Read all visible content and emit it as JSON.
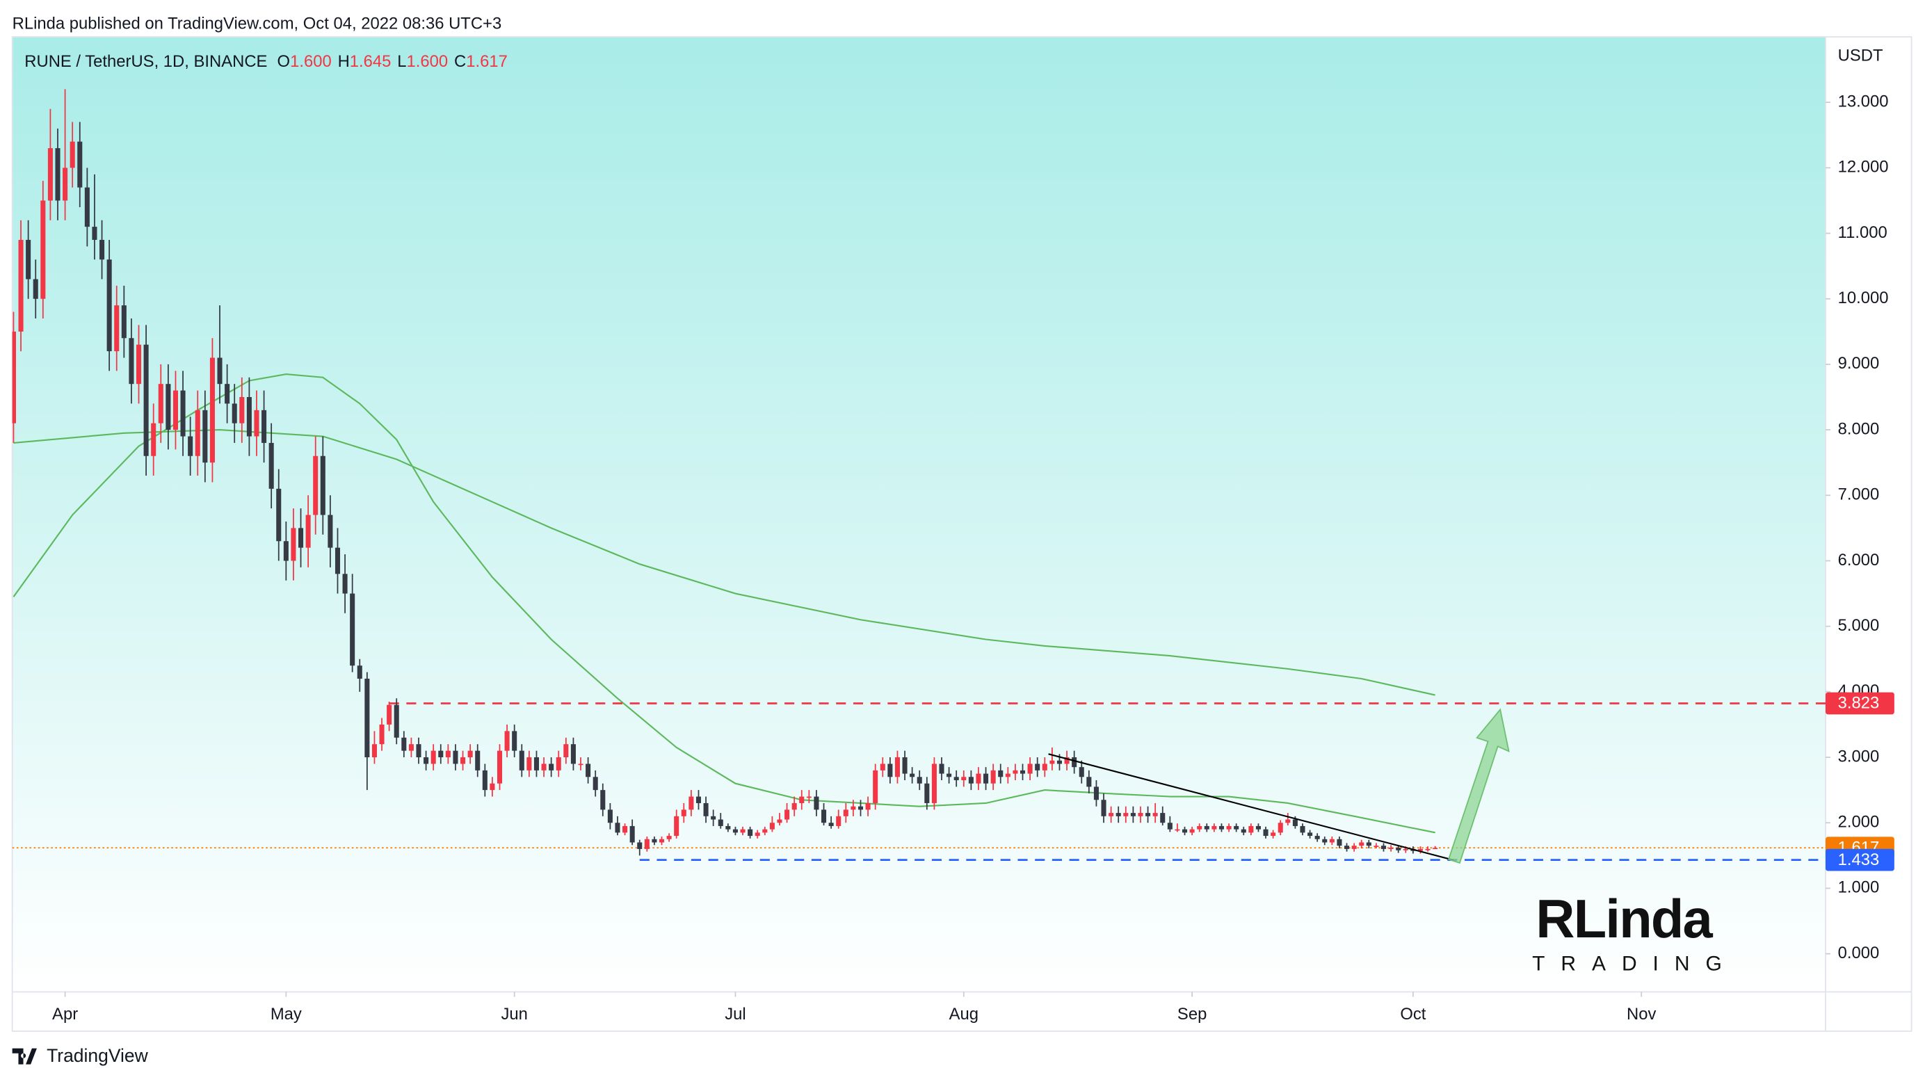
{
  "header": {
    "publisher": "RLinda published on TradingView.com, Oct 04, 2022 08:36 UTC+3",
    "symbol": "RUNE / TetherUS, 1D, BINANCE",
    "ohlc_legend": [
      {
        "key": "O",
        "value": "1.600"
      },
      {
        "key": "H",
        "value": "1.645"
      },
      {
        "key": "L",
        "value": "1.600"
      },
      {
        "key": "C",
        "value": "1.617"
      }
    ]
  },
  "footer": {
    "brand": "TradingView"
  },
  "logo": {
    "name": "RLinda",
    "tagline": "TRADING"
  },
  "chart_data": {
    "type": "candlestick",
    "y_unit": "USDT",
    "up_color": "#f23645",
    "down_color": "#363a45",
    "xlim": [
      -7.17,
      239
    ],
    "ylim": [
      -0.582,
      14.0
    ],
    "xticks": [
      {
        "value": 0,
        "label": "Apr"
      },
      {
        "value": 30,
        "label": "May"
      },
      {
        "value": 61,
        "label": "Jun"
      },
      {
        "value": 91,
        "label": "Jul"
      },
      {
        "value": 122,
        "label": "Aug"
      },
      {
        "value": 153,
        "label": "Sep"
      },
      {
        "value": 183,
        "label": "Oct"
      },
      {
        "value": 214,
        "label": "Nov"
      }
    ],
    "yticks": [
      {
        "value": 0,
        "label": "0.000"
      },
      {
        "value": 1,
        "label": "1.000"
      },
      {
        "value": 2,
        "label": "2.000"
      },
      {
        "value": 3,
        "label": "3.000"
      },
      {
        "value": 4,
        "label": "4.000"
      },
      {
        "value": 5,
        "label": "5.000"
      },
      {
        "value": 6,
        "label": "6.000"
      },
      {
        "value": 7,
        "label": "7.000"
      },
      {
        "value": 8,
        "label": "8.000"
      },
      {
        "value": 9,
        "label": "9.000"
      },
      {
        "value": 10,
        "label": "10.000"
      },
      {
        "value": 11,
        "label": "11.000"
      },
      {
        "value": 12,
        "label": "12.000"
      },
      {
        "value": 13,
        "label": "13.000"
      }
    ],
    "x": [
      -7,
      -6,
      -5,
      -4,
      -3,
      -2,
      -1,
      0,
      1,
      2,
      3,
      4,
      5,
      6,
      7,
      8,
      9,
      10,
      11,
      12,
      13,
      14,
      15,
      16,
      17,
      18,
      19,
      20,
      21,
      22,
      23,
      24,
      25,
      26,
      27,
      28,
      29,
      30,
      31,
      32,
      33,
      34,
      35,
      36,
      37,
      38,
      39,
      40,
      41,
      42,
      43,
      44,
      45,
      46,
      47,
      48,
      49,
      50,
      51,
      52,
      53,
      54,
      55,
      56,
      57,
      58,
      59,
      60,
      61,
      62,
      63,
      64,
      65,
      66,
      67,
      68,
      69,
      70,
      71,
      72,
      73,
      74,
      75,
      76,
      77,
      78,
      79,
      80,
      81,
      82,
      83,
      84,
      85,
      86,
      87,
      88,
      89,
      90,
      91,
      92,
      93,
      94,
      95,
      96,
      97,
      98,
      99,
      100,
      101,
      102,
      103,
      104,
      105,
      106,
      107,
      108,
      109,
      110,
      111,
      112,
      113,
      114,
      115,
      116,
      117,
      118,
      119,
      120,
      121,
      122,
      123,
      124,
      125,
      126,
      127,
      128,
      129,
      130,
      131,
      132,
      133,
      134,
      135,
      136,
      137,
      138,
      139,
      140,
      141,
      142,
      143,
      144,
      145,
      146,
      147,
      148,
      149,
      150,
      151,
      152,
      153,
      154,
      155,
      156,
      157,
      158,
      159,
      160,
      161,
      162,
      163,
      164,
      165,
      166,
      167,
      168,
      169,
      170,
      171,
      172,
      173,
      174,
      175,
      176,
      177,
      178,
      179,
      180,
      181,
      182,
      183,
      184,
      185,
      186
    ],
    "ohlc": [
      [
        8.1,
        9.8,
        7.8,
        9.5
      ],
      [
        9.5,
        11.2,
        9.2,
        10.9
      ],
      [
        10.9,
        11.2,
        10.0,
        10.3
      ],
      [
        10.3,
        10.6,
        9.7,
        10.0
      ],
      [
        10.0,
        11.8,
        9.7,
        11.5
      ],
      [
        11.5,
        12.9,
        11.2,
        12.3
      ],
      [
        12.3,
        12.6,
        11.2,
        11.5
      ],
      [
        11.5,
        13.2,
        11.2,
        12.0
      ],
      [
        12.0,
        12.7,
        11.7,
        12.4
      ],
      [
        12.4,
        12.7,
        11.4,
        11.7
      ],
      [
        11.7,
        12.0,
        10.8,
        11.1
      ],
      [
        11.1,
        11.9,
        10.6,
        10.9
      ],
      [
        10.9,
        11.2,
        10.3,
        10.6
      ],
      [
        10.6,
        10.9,
        8.9,
        9.2
      ],
      [
        9.2,
        10.2,
        8.9,
        9.9
      ],
      [
        9.9,
        10.2,
        9.1,
        9.4
      ],
      [
        9.4,
        9.7,
        8.4,
        8.7
      ],
      [
        8.7,
        9.6,
        8.4,
        9.3
      ],
      [
        9.3,
        9.6,
        7.3,
        7.6
      ],
      [
        7.6,
        8.4,
        7.3,
        8.1
      ],
      [
        8.1,
        9.0,
        7.8,
        8.7
      ],
      [
        8.7,
        9.0,
        7.7,
        8.0
      ],
      [
        8.0,
        8.9,
        7.7,
        8.6
      ],
      [
        8.6,
        8.9,
        7.6,
        7.9
      ],
      [
        7.9,
        8.2,
        7.3,
        7.6
      ],
      [
        7.6,
        8.6,
        7.3,
        8.3
      ],
      [
        8.3,
        8.6,
        7.2,
        7.5
      ],
      [
        7.5,
        9.4,
        7.2,
        9.1
      ],
      [
        9.1,
        9.9,
        8.4,
        8.7
      ],
      [
        8.7,
        9.0,
        8.1,
        8.4
      ],
      [
        8.4,
        8.7,
        7.8,
        8.1
      ],
      [
        8.1,
        8.8,
        7.8,
        8.5
      ],
      [
        8.5,
        8.8,
        7.6,
        7.9
      ],
      [
        7.9,
        8.6,
        7.6,
        8.3
      ],
      [
        8.3,
        8.6,
        7.5,
        7.8
      ],
      [
        7.8,
        8.1,
        6.8,
        7.1
      ],
      [
        7.1,
        7.4,
        6.0,
        6.3
      ],
      [
        6.3,
        6.6,
        5.7,
        6.0
      ],
      [
        6.0,
        6.8,
        5.7,
        6.5
      ],
      [
        6.5,
        6.8,
        5.9,
        6.2
      ],
      [
        6.2,
        7.0,
        5.9,
        6.7
      ],
      [
        6.7,
        7.9,
        6.4,
        7.6
      ],
      [
        7.6,
        7.9,
        6.4,
        6.7
      ],
      [
        6.7,
        7.0,
        5.9,
        6.2
      ],
      [
        6.2,
        6.5,
        5.5,
        5.8
      ],
      [
        5.8,
        6.1,
        5.2,
        5.5
      ],
      [
        5.5,
        5.8,
        4.3,
        4.4
      ],
      [
        4.4,
        4.5,
        4.0,
        4.2
      ],
      [
        4.2,
        4.3,
        2.5,
        3.0
      ],
      [
        3.0,
        3.4,
        2.9,
        3.2
      ],
      [
        3.2,
        3.6,
        3.1,
        3.5
      ],
      [
        3.5,
        3.85,
        3.4,
        3.8
      ],
      [
        3.8,
        3.9,
        3.2,
        3.3
      ],
      [
        3.3,
        3.4,
        3.0,
        3.1
      ],
      [
        3.1,
        3.3,
        3.0,
        3.2
      ],
      [
        3.2,
        3.3,
        2.9,
        3.0
      ],
      [
        3.0,
        3.1,
        2.8,
        2.9
      ],
      [
        2.9,
        3.2,
        2.8,
        3.1
      ],
      [
        3.1,
        3.2,
        2.9,
        3.0
      ],
      [
        3.0,
        3.2,
        2.9,
        3.1
      ],
      [
        3.1,
        3.2,
        2.8,
        2.9
      ],
      [
        2.9,
        3.1,
        2.8,
        3.0
      ],
      [
        3.0,
        3.2,
        2.9,
        3.1
      ],
      [
        3.1,
        3.2,
        2.7,
        2.8
      ],
      [
        2.8,
        2.9,
        2.4,
        2.5
      ],
      [
        2.5,
        2.7,
        2.4,
        2.6
      ],
      [
        2.6,
        3.2,
        2.5,
        3.1
      ],
      [
        3.1,
        3.5,
        3.0,
        3.4
      ],
      [
        3.4,
        3.5,
        3.0,
        3.1
      ],
      [
        3.1,
        3.2,
        2.7,
        2.8
      ],
      [
        2.8,
        3.1,
        2.7,
        3.0
      ],
      [
        3.0,
        3.1,
        2.7,
        2.8
      ],
      [
        2.8,
        3.0,
        2.7,
        2.9
      ],
      [
        2.9,
        3.0,
        2.7,
        2.8
      ],
      [
        2.8,
        3.1,
        2.7,
        3.0
      ],
      [
        3.0,
        3.3,
        2.9,
        3.2
      ],
      [
        3.2,
        3.3,
        2.8,
        2.9
      ],
      [
        2.9,
        3.0,
        2.8,
        2.9
      ],
      [
        2.9,
        3.0,
        2.6,
        2.7
      ],
      [
        2.7,
        2.8,
        2.4,
        2.5
      ],
      [
        2.5,
        2.6,
        2.1,
        2.2
      ],
      [
        2.2,
        2.3,
        1.9,
        2.0
      ],
      [
        2.0,
        2.1,
        1.81,
        1.85
      ],
      [
        1.85,
        1.99,
        1.81,
        1.95
      ],
      [
        1.95,
        2.05,
        1.66,
        1.7
      ],
      [
        1.7,
        1.74,
        1.5,
        1.6
      ],
      [
        1.6,
        1.79,
        1.56,
        1.75
      ],
      [
        1.75,
        1.79,
        1.66,
        1.7
      ],
      [
        1.7,
        1.79,
        1.66,
        1.75
      ],
      [
        1.75,
        1.84,
        1.71,
        1.8
      ],
      [
        1.8,
        2.2,
        1.76,
        2.1
      ],
      [
        2.1,
        2.3,
        2.0,
        2.2
      ],
      [
        2.2,
        2.5,
        2.1,
        2.4
      ],
      [
        2.4,
        2.5,
        2.2,
        2.3
      ],
      [
        2.3,
        2.4,
        2.0,
        2.1
      ],
      [
        2.1,
        2.2,
        1.95,
        2.05
      ],
      [
        2.05,
        2.15,
        1.91,
        1.95
      ],
      [
        1.95,
        1.99,
        1.86,
        1.9
      ],
      [
        1.9,
        1.94,
        1.81,
        1.85
      ],
      [
        1.85,
        1.94,
        1.81,
        1.9
      ],
      [
        1.9,
        1.94,
        1.76,
        1.8
      ],
      [
        1.8,
        1.89,
        1.76,
        1.85
      ],
      [
        1.85,
        1.94,
        1.81,
        1.9
      ],
      [
        1.9,
        2.1,
        1.86,
        2.0
      ],
      [
        2.0,
        2.15,
        1.96,
        2.05
      ],
      [
        2.05,
        2.3,
        2.0,
        2.2
      ],
      [
        2.2,
        2.4,
        2.1,
        2.3
      ],
      [
        2.3,
        2.5,
        2.2,
        2.4
      ],
      [
        2.4,
        2.5,
        2.3,
        2.4
      ],
      [
        2.4,
        2.5,
        2.1,
        2.2
      ],
      [
        2.2,
        2.3,
        1.96,
        2.0
      ],
      [
        2.0,
        2.1,
        1.91,
        1.95
      ],
      [
        1.95,
        2.2,
        1.91,
        2.1
      ],
      [
        2.1,
        2.3,
        2.0,
        2.2
      ],
      [
        2.2,
        2.35,
        2.1,
        2.25
      ],
      [
        2.25,
        2.35,
        2.1,
        2.2
      ],
      [
        2.2,
        2.4,
        2.1,
        2.3
      ],
      [
        2.3,
        2.9,
        2.2,
        2.8
      ],
      [
        2.8,
        3.0,
        2.7,
        2.9
      ],
      [
        2.9,
        3.0,
        2.6,
        2.7
      ],
      [
        2.7,
        3.1,
        2.6,
        3.0
      ],
      [
        3.0,
        3.1,
        2.65,
        2.75
      ],
      [
        2.75,
        2.85,
        2.6,
        2.7
      ],
      [
        2.7,
        2.8,
        2.5,
        2.6
      ],
      [
        2.6,
        2.7,
        2.2,
        2.3
      ],
      [
        2.3,
        3.0,
        2.2,
        2.9
      ],
      [
        2.9,
        3.0,
        2.65,
        2.75
      ],
      [
        2.75,
        2.85,
        2.6,
        2.7
      ],
      [
        2.7,
        2.8,
        2.55,
        2.65
      ],
      [
        2.65,
        2.8,
        2.55,
        2.7
      ],
      [
        2.7,
        2.8,
        2.5,
        2.6
      ],
      [
        2.6,
        2.85,
        2.5,
        2.75
      ],
      [
        2.75,
        2.85,
        2.5,
        2.6
      ],
      [
        2.6,
        2.9,
        2.5,
        2.8
      ],
      [
        2.8,
        2.9,
        2.6,
        2.7
      ],
      [
        2.7,
        2.85,
        2.6,
        2.75
      ],
      [
        2.75,
        2.9,
        2.65,
        2.8
      ],
      [
        2.8,
        2.9,
        2.65,
        2.75
      ],
      [
        2.75,
        3.0,
        2.65,
        2.9
      ],
      [
        2.9,
        3.0,
        2.7,
        2.8
      ],
      [
        2.8,
        3.0,
        2.7,
        2.9
      ],
      [
        2.9,
        3.15,
        2.8,
        2.95
      ],
      [
        2.95,
        3.05,
        2.8,
        2.9
      ],
      [
        2.9,
        3.1,
        2.8,
        3.0
      ],
      [
        3.0,
        3.1,
        2.75,
        2.85
      ],
      [
        2.85,
        2.95,
        2.6,
        2.7
      ],
      [
        2.7,
        2.8,
        2.45,
        2.55
      ],
      [
        2.55,
        2.65,
        2.25,
        2.35
      ],
      [
        2.35,
        2.45,
        2.0,
        2.1
      ],
      [
        2.1,
        2.25,
        2.0,
        2.15
      ],
      [
        2.15,
        2.25,
        2.0,
        2.1
      ],
      [
        2.1,
        2.25,
        2.0,
        2.15
      ],
      [
        2.15,
        2.25,
        2.0,
        2.1
      ],
      [
        2.1,
        2.25,
        2.0,
        2.15
      ],
      [
        2.15,
        2.25,
        2.0,
        2.1
      ],
      [
        2.1,
        2.3,
        2.0,
        2.15
      ],
      [
        2.15,
        2.25,
        1.96,
        2.0
      ],
      [
        2.0,
        2.1,
        1.86,
        1.9
      ],
      [
        1.9,
        1.99,
        1.86,
        1.9
      ],
      [
        1.9,
        1.94,
        1.81,
        1.85
      ],
      [
        1.85,
        1.94,
        1.81,
        1.9
      ],
      [
        1.9,
        1.99,
        1.86,
        1.95
      ],
      [
        1.95,
        1.99,
        1.86,
        1.9
      ],
      [
        1.9,
        1.99,
        1.86,
        1.95
      ],
      [
        1.95,
        1.99,
        1.86,
        1.9
      ],
      [
        1.9,
        1.99,
        1.86,
        1.95
      ],
      [
        1.95,
        1.99,
        1.86,
        1.9
      ],
      [
        1.9,
        1.94,
        1.81,
        1.85
      ],
      [
        1.85,
        1.99,
        1.81,
        1.95
      ],
      [
        1.95,
        1.99,
        1.86,
        1.9
      ],
      [
        1.9,
        1.94,
        1.76,
        1.8
      ],
      [
        1.8,
        1.89,
        1.76,
        1.85
      ],
      [
        1.85,
        2.04,
        1.81,
        2.0
      ],
      [
        2.0,
        2.15,
        1.96,
        2.05
      ],
      [
        2.05,
        2.1,
        1.91,
        1.95
      ],
      [
        1.95,
        1.99,
        1.81,
        1.85
      ],
      [
        1.85,
        1.89,
        1.76,
        1.8
      ],
      [
        1.8,
        1.84,
        1.71,
        1.75
      ],
      [
        1.75,
        1.79,
        1.66,
        1.7
      ],
      [
        1.7,
        1.79,
        1.66,
        1.75
      ],
      [
        1.75,
        1.79,
        1.61,
        1.65
      ],
      [
        1.65,
        1.69,
        1.56,
        1.6
      ],
      [
        1.6,
        1.69,
        1.56,
        1.65
      ],
      [
        1.65,
        1.74,
        1.61,
        1.7
      ],
      [
        1.7,
        1.74,
        1.61,
        1.65
      ],
      [
        1.65,
        1.69,
        1.61,
        1.65
      ],
      [
        1.65,
        1.69,
        1.56,
        1.6
      ],
      [
        1.6,
        1.66,
        1.56,
        1.62
      ],
      [
        1.62,
        1.66,
        1.54,
        1.58
      ],
      [
        1.58,
        1.64,
        1.54,
        1.6
      ],
      [
        1.6,
        1.64,
        1.53,
        1.57
      ],
      [
        1.57,
        1.64,
        1.53,
        1.6
      ],
      [
        1.6,
        1.64,
        1.56,
        1.6
      ],
      [
        1.6,
        1.645,
        1.6,
        1.617
      ]
    ],
    "moving_averages": [
      {
        "color": "#5cb85c",
        "x": [
          -7,
          1,
          10,
          18,
          25,
          30,
          35,
          40,
          45,
          50,
          58,
          66,
          75,
          83,
          91,
          100,
          108,
          116,
          125,
          133,
          141,
          150,
          158,
          166,
          175,
          186
        ],
        "values": [
          5.45,
          6.7,
          7.75,
          8.3,
          8.75,
          8.85,
          8.8,
          8.4,
          7.85,
          6.9,
          5.75,
          4.8,
          3.9,
          3.15,
          2.6,
          2.35,
          2.3,
          2.25,
          2.3,
          2.5,
          2.45,
          2.4,
          2.4,
          2.3,
          2.1,
          1.85
        ]
      },
      {
        "color": "#5cb85c",
        "x": [
          -7,
          8,
          21,
          35,
          45,
          58,
          66,
          78,
          91,
          108,
          125,
          133,
          150,
          166,
          176,
          186
        ],
        "values": [
          7.8,
          7.95,
          8.0,
          7.9,
          7.55,
          6.9,
          6.5,
          5.95,
          5.5,
          5.1,
          4.8,
          4.7,
          4.55,
          4.35,
          4.2,
          3.95
        ]
      }
    ],
    "levels": [
      {
        "value": 3.823,
        "label": "3.823",
        "color": "#f23645",
        "style": "dashed",
        "from": 44
      },
      {
        "value": 1.617,
        "label": "1.617",
        "color": "#f57c00",
        "style": "dotted"
      },
      {
        "value": 1.433,
        "label": "1.433",
        "color": "#2962ff",
        "style": "dashed",
        "from": 78
      }
    ],
    "trendline": {
      "x": [
        133.5,
        188.5
      ],
      "y": [
        3.05,
        1.43
      ],
      "color": "#000000"
    }
  }
}
